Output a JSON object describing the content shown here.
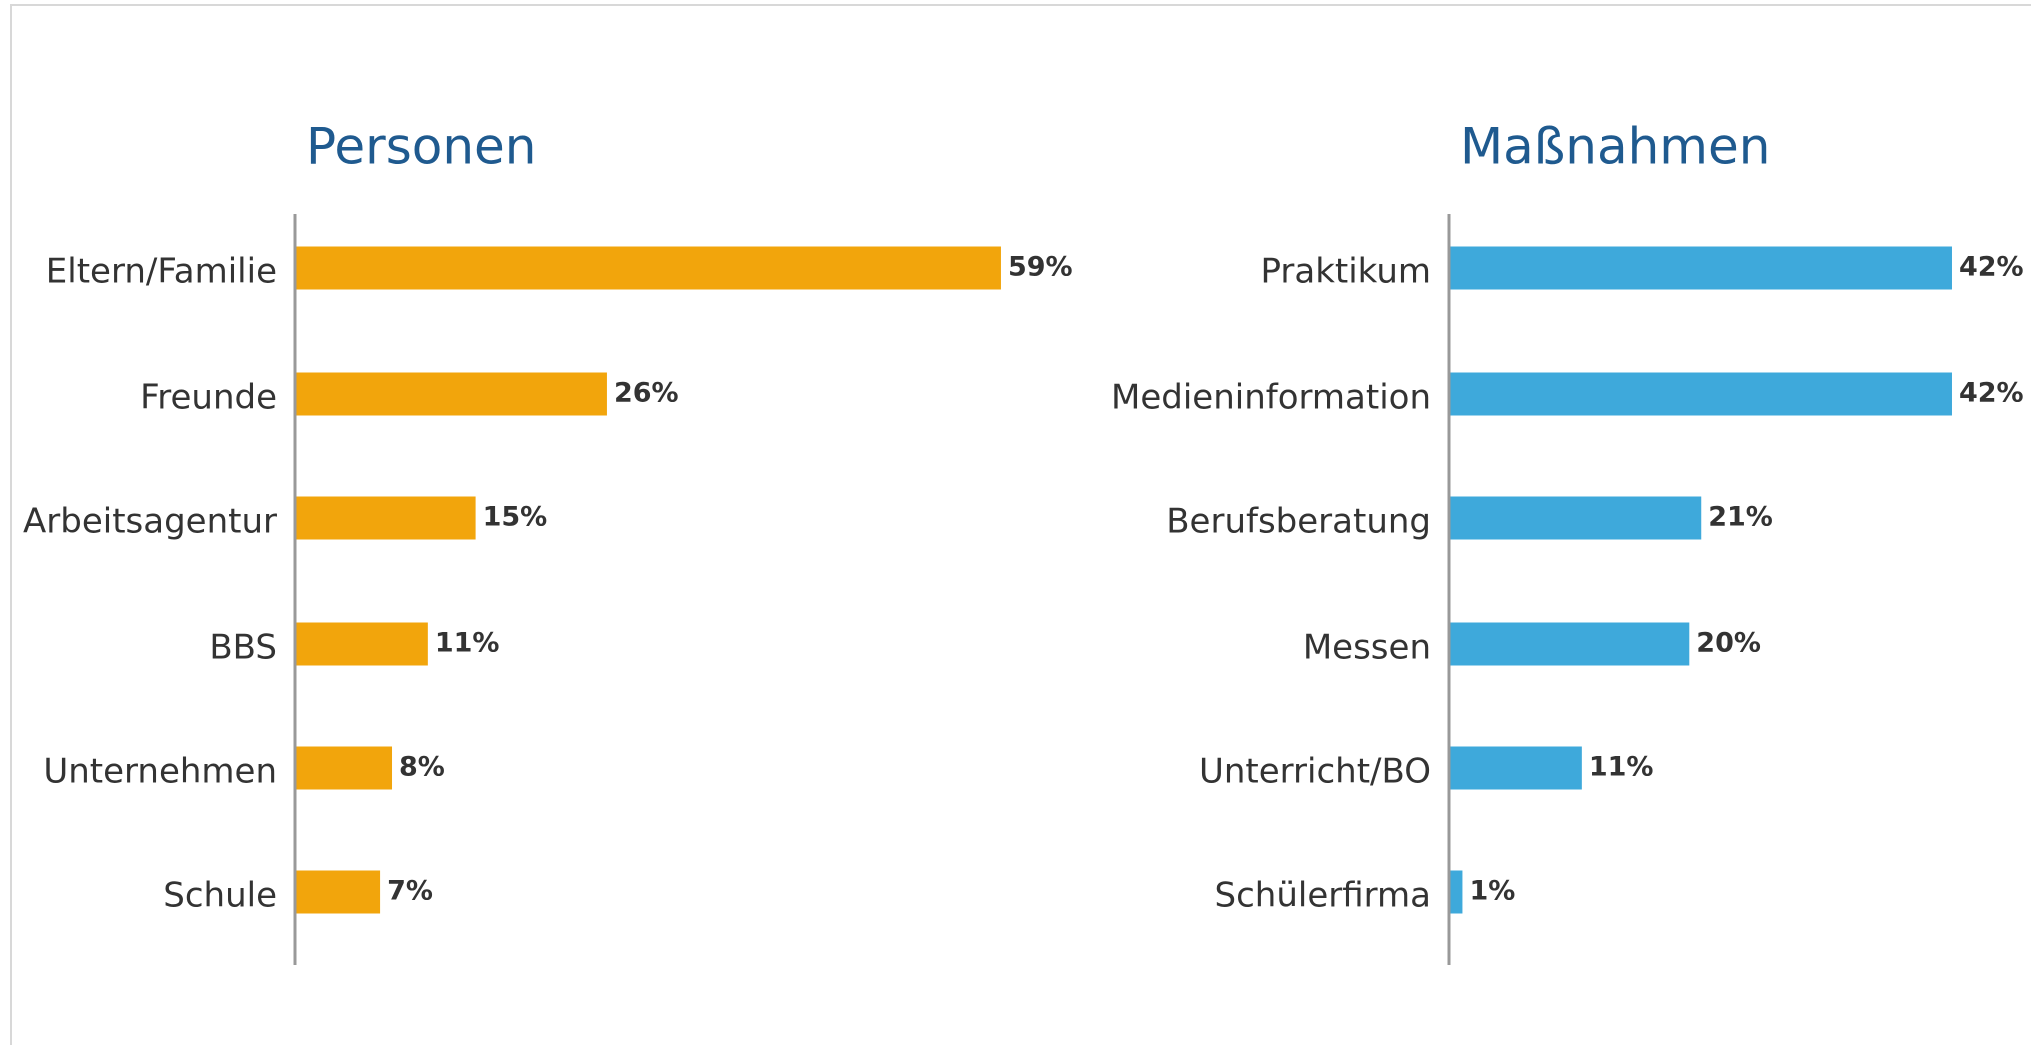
{
  "chart_data": [
    {
      "type": "bar",
      "orientation": "horizontal",
      "title": "Personen",
      "color": "#f2a50c",
      "categories": [
        "Eltern/Familie",
        "Freunde",
        "Arbeitsagentur",
        "BBS",
        "Unternehmen",
        "Schule"
      ],
      "values": [
        59,
        26,
        15,
        11,
        8,
        7
      ],
      "value_labels": [
        "59%",
        "26%",
        "15%",
        "11%",
        "8%",
        "7%"
      ]
    },
    {
      "type": "bar",
      "orientation": "horizontal",
      "title": "Maßnahmen",
      "color": "#3ea9db",
      "categories": [
        "Praktikum",
        "Medieninformation",
        "Berufsberatung",
        "Messen",
        "Unterricht/BO",
        "Schülerfirma"
      ],
      "values": [
        42,
        42,
        21,
        20,
        11,
        1
      ],
      "value_labels": [
        "42%",
        "42%",
        "21%",
        "20%",
        "11%",
        "1%"
      ]
    }
  ]
}
